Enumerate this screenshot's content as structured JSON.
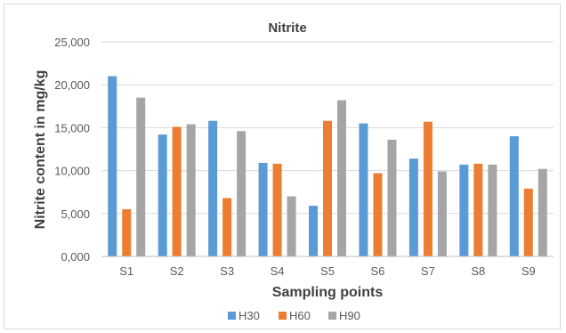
{
  "chart_data": {
    "type": "bar",
    "title": "Nitrite",
    "xlabel": "Sampling points",
    "ylabel": "Nitrite content in mg/kg",
    "categories": [
      "S1",
      "S2",
      "S3",
      "S4",
      "S5",
      "S6",
      "S7",
      "S8",
      "S9"
    ],
    "series": [
      {
        "name": "H30",
        "color": "#5B9BD5",
        "values": [
          21000,
          14200,
          15800,
          10900,
          5900,
          15500,
          11400,
          10700,
          14000
        ]
      },
      {
        "name": "H60",
        "color": "#ED7D31",
        "values": [
          5500,
          15100,
          6800,
          10800,
          15800,
          9700,
          15700,
          10800,
          7900
        ]
      },
      {
        "name": "H90",
        "color": "#A5A5A5",
        "values": [
          18500,
          15400,
          14600,
          7000,
          18200,
          13600,
          9900,
          10700,
          10200
        ]
      }
    ],
    "ylim": [
      0,
      25000
    ],
    "yticks": [
      "0,000",
      "5,000",
      "10,000",
      "15,000",
      "20,000",
      "25,000"
    ],
    "grid": true,
    "legend_position": "bottom"
  }
}
